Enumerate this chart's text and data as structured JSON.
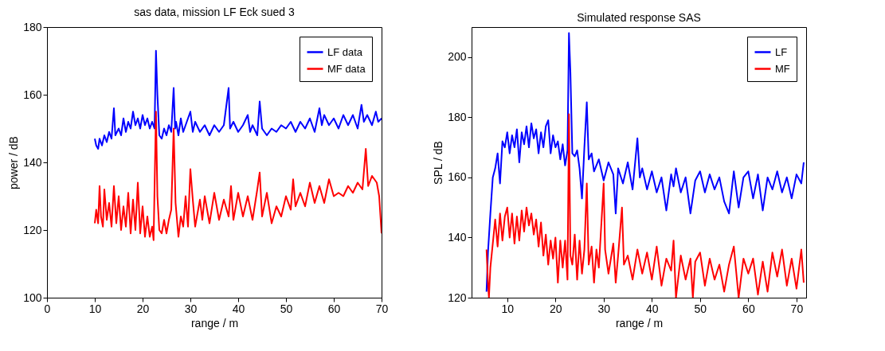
{
  "chart_data": [
    {
      "type": "line",
      "title": "sas data, mission LF Eck sued 3",
      "xlabel": "range / m",
      "ylabel": "power / dB",
      "xlim": [
        0,
        70
      ],
      "xticks": [
        0,
        10,
        20,
        30,
        40,
        50,
        60,
        70
      ],
      "ylim": [
        100,
        180
      ],
      "yticks": [
        100,
        120,
        140,
        160,
        180
      ],
      "grid": false,
      "legend": "top right",
      "line_style": "solid",
      "series": [
        {
          "name": "LF data",
          "color": "#0000ff",
          "x": [
            10,
            10.3,
            10.7,
            11,
            11.5,
            12,
            12.5,
            13,
            13.5,
            14,
            14.3,
            15,
            15.5,
            16,
            16.5,
            17,
            17.5,
            18,
            18.5,
            19,
            19.5,
            20,
            20.5,
            21,
            21.5,
            22,
            22.5,
            22.8,
            23.1,
            23.5,
            24,
            24.5,
            25,
            25.5,
            26,
            26.5,
            26.8,
            27,
            27.5,
            28,
            28.5,
            29,
            30,
            30.5,
            31,
            32,
            33,
            34,
            35,
            36,
            37,
            38,
            38.3,
            39,
            40,
            41,
            42,
            42.5,
            43,
            44,
            44.5,
            45,
            46,
            47,
            48,
            49,
            50,
            51,
            52,
            53,
            54,
            55,
            56,
            57,
            57.5,
            58,
            59,
            60,
            61,
            62,
            63,
            64,
            65,
            65.8,
            66.3,
            67,
            68,
            68.8,
            69.3,
            70
          ],
          "values": [
            147,
            145,
            144,
            147,
            145,
            148,
            146,
            149,
            147,
            156,
            148,
            150,
            148,
            153,
            149,
            152,
            150,
            155,
            151,
            153,
            150,
            154,
            151,
            153,
            150,
            152,
            150,
            173,
            160,
            148,
            147,
            150,
            148,
            151,
            149,
            162,
            150,
            152,
            148,
            153,
            149,
            151,
            155,
            149,
            152,
            149,
            151,
            148,
            151,
            149,
            151,
            162,
            150,
            152,
            149,
            151,
            154,
            149,
            151,
            148,
            158,
            150,
            148,
            150,
            149,
            151,
            150,
            152,
            149,
            152,
            150,
            153,
            149,
            156,
            151,
            154,
            151,
            153,
            150,
            154,
            151,
            154,
            150,
            157,
            152,
            154,
            151,
            155,
            152,
            153
          ]
        },
        {
          "name": "MF data",
          "color": "#ff0000",
          "x": [
            10,
            10.3,
            10.7,
            11,
            11.3,
            11.7,
            12,
            12.5,
            13,
            13.5,
            14,
            14.5,
            15,
            15.5,
            16,
            16.5,
            17,
            17.5,
            18,
            18.5,
            19,
            19.5,
            20,
            20.5,
            21,
            21.5,
            22,
            22.3,
            22.8,
            23.1,
            23.5,
            24,
            24.5,
            25,
            25.5,
            26,
            26.5,
            26.9,
            27.5,
            28,
            28.5,
            29,
            29.5,
            30,
            30.5,
            31,
            32,
            32.5,
            33,
            34,
            35,
            36,
            37,
            38,
            38.5,
            39,
            40,
            41,
            42,
            43,
            44,
            44.5,
            45,
            46,
            47,
            48,
            49,
            50,
            51,
            51.5,
            52,
            53,
            54,
            55,
            56,
            57,
            58,
            59,
            60,
            61,
            62,
            63,
            64,
            65,
            66,
            66.7,
            67.2,
            68,
            69,
            69.5,
            70
          ],
          "values": [
            122,
            126,
            122,
            133,
            124,
            121,
            132,
            123,
            128,
            121,
            133,
            122,
            130,
            120,
            127,
            121,
            131,
            119,
            129,
            120,
            134,
            119,
            127,
            118,
            124,
            118,
            121,
            117,
            155,
            130,
            120,
            119,
            123,
            119,
            123,
            126,
            150,
            128,
            118,
            124,
            121,
            130,
            121,
            138,
            129,
            121,
            129,
            123,
            130,
            122,
            131,
            123,
            129,
            124,
            133,
            123,
            131,
            124,
            130,
            123,
            132,
            137,
            124,
            131,
            122,
            127,
            124,
            130,
            126,
            135,
            127,
            131,
            127,
            134,
            128,
            133,
            128,
            135,
            130,
            131,
            130,
            133,
            131,
            134,
            132,
            144,
            133,
            136,
            134,
            130,
            119
          ]
        }
      ]
    },
    {
      "type": "line",
      "title": "Simulated response SAS",
      "xlabel": "range / m",
      "ylabel": "SPL / dB",
      "xlim": [
        2.6,
        72
      ],
      "xticks": [
        10,
        20,
        30,
        40,
        50,
        60,
        70
      ],
      "ylim": [
        120,
        210
      ],
      "yticks": [
        120,
        140,
        160,
        180,
        200
      ],
      "grid": false,
      "legend": "top right",
      "line_style": "solid",
      "series": [
        {
          "name": "LF",
          "color": "#0000ff",
          "x": [
            5.7,
            6,
            6.5,
            7,
            7.5,
            8,
            8.5,
            9,
            9.5,
            10,
            10.5,
            11,
            11.5,
            12,
            12.5,
            13,
            13.5,
            14,
            14.5,
            15,
            15.5,
            16,
            16.5,
            17,
            17.5,
            18,
            18.5,
            19,
            19.5,
            20,
            20.5,
            21,
            21.5,
            22,
            22.5,
            22.8,
            23.1,
            23.5,
            24,
            24.5,
            25,
            25.5,
            26,
            26.5,
            26.9,
            27.5,
            28,
            29,
            30,
            31,
            32,
            32.5,
            33,
            34,
            35,
            36,
            37,
            37.5,
            38,
            39,
            40,
            41,
            42,
            43,
            44,
            44.5,
            45,
            46,
            47,
            48,
            49,
            50,
            51,
            52,
            53,
            54,
            55,
            56,
            57,
            58,
            59,
            60,
            61,
            62,
            63,
            64,
            65,
            66,
            67,
            68,
            69,
            70,
            71,
            71.5
          ],
          "values": [
            122,
            135,
            148,
            160,
            163,
            168,
            158,
            172,
            170,
            175,
            168,
            174,
            170,
            176,
            165,
            175,
            171,
            177,
            170,
            178,
            173,
            176,
            168,
            175,
            170,
            177,
            179,
            168,
            174,
            170,
            172,
            166,
            171,
            164,
            169,
            208,
            195,
            168,
            167,
            169,
            163,
            153,
            170,
            185,
            166,
            168,
            162,
            166,
            159,
            165,
            161,
            148,
            163,
            158,
            165,
            156,
            173,
            160,
            163,
            156,
            162,
            155,
            160,
            149,
            161,
            157,
            163,
            155,
            160,
            148,
            159,
            162,
            155,
            161,
            156,
            160,
            152,
            148,
            162,
            150,
            160,
            162,
            153,
            161,
            149,
            160,
            156,
            162,
            155,
            160,
            153,
            161,
            158,
            165
          ]
        },
        {
          "name": "MF",
          "color": "#ff0000",
          "x": [
            5.7,
            6,
            6.2,
            6.5,
            7,
            7.5,
            8,
            8.5,
            9,
            9.5,
            10,
            10.5,
            11,
            11.5,
            12,
            12.5,
            13,
            13.5,
            14,
            14.5,
            15,
            15.5,
            16,
            16.5,
            17,
            17.5,
            18,
            18.5,
            19,
            19.5,
            20,
            20.5,
            21,
            21.5,
            22,
            22.5,
            22.8,
            23.1,
            23.5,
            24,
            24.5,
            25,
            25.5,
            26,
            26.5,
            26.9,
            27.5,
            28,
            28.5,
            29,
            30,
            30.3,
            31,
            32,
            32.5,
            33,
            33.8,
            34.2,
            35,
            36,
            37,
            38,
            39,
            40,
            41,
            42,
            43,
            44,
            44.5,
            45,
            46,
            47,
            48,
            48.5,
            49,
            50,
            51,
            52,
            53,
            54,
            55,
            56,
            57,
            58,
            59,
            60,
            61,
            62,
            63,
            64,
            65,
            66,
            67,
            68,
            69,
            70,
            71,
            71.5
          ],
          "values": [
            136,
            125,
            120,
            130,
            138,
            146,
            137,
            148,
            139,
            147,
            150,
            140,
            148,
            138,
            147,
            139,
            149,
            142,
            150,
            144,
            148,
            141,
            146,
            137,
            145,
            134,
            141,
            131,
            139,
            133,
            140,
            125,
            139,
            130,
            139,
            126,
            181,
            134,
            131,
            141,
            126,
            139,
            128,
            136,
            158,
            131,
            137,
            125,
            136,
            130,
            158,
            136,
            128,
            138,
            125,
            134,
            150,
            131,
            134,
            126,
            136,
            128,
            135,
            126,
            137,
            124,
            133,
            129,
            139,
            120,
            134,
            126,
            133,
            120,
            132,
            135,
            124,
            133,
            126,
            131,
            122,
            131,
            137,
            120,
            133,
            128,
            133,
            121,
            132,
            122,
            135,
            127,
            136,
            124,
            133,
            123,
            136,
            125
          ]
        }
      ]
    }
  ]
}
